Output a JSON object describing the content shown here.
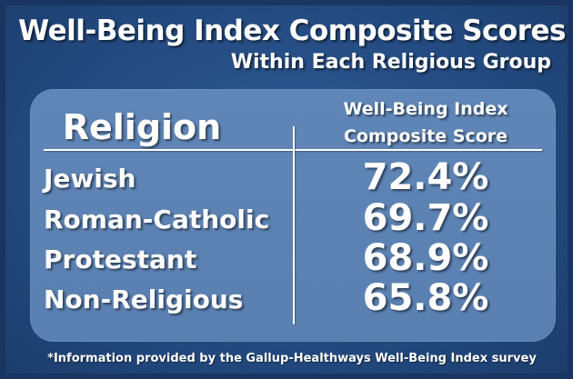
{
  "chart_data": {
    "type": "table",
    "title": "Well-Being Index Composite Scores",
    "subtitle": "Within Each Religious Group",
    "columns": [
      "Religion",
      "Well-Being Index Composite Score"
    ],
    "column_header_lines": [
      "Well-Being Index",
      "Composite Score"
    ],
    "categories": [
      "Jewish",
      "Roman-Catholic",
      "Protestant",
      "Non-Religious"
    ],
    "values": [
      "72.4%",
      "69.7%",
      "68.9%",
      "65.8%"
    ],
    "footnote": "*Information provided by the Gallup-Healthways Well-Being Index survey"
  },
  "colors": {
    "background": "#234a80",
    "panel": "#5c82b3",
    "text": "#ffffff"
  }
}
